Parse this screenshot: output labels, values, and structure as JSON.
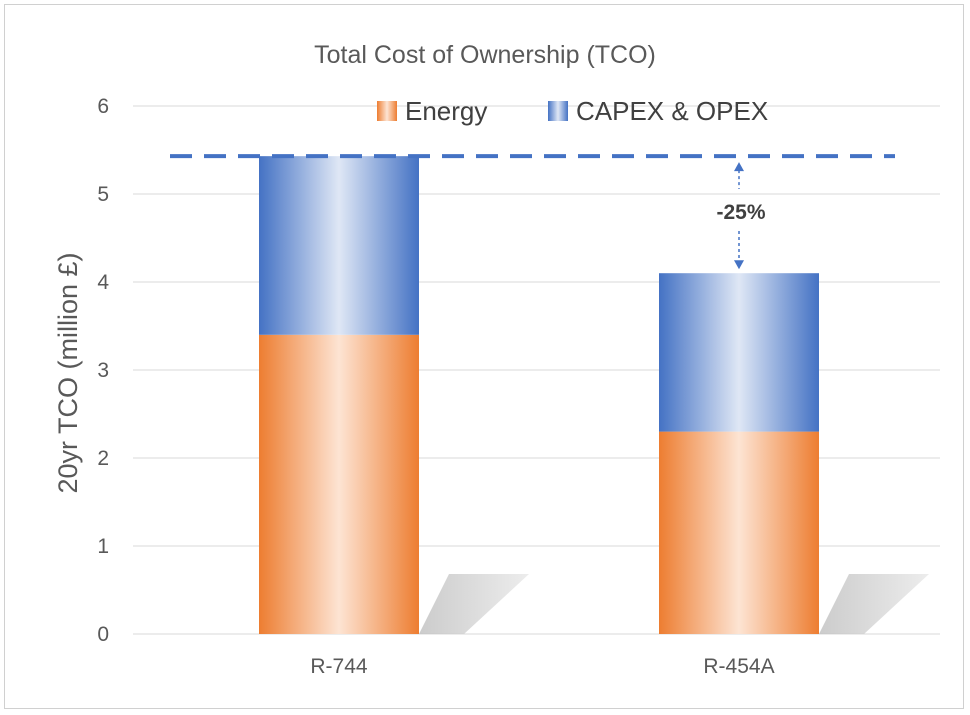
{
  "chart_data": {
    "type": "bar",
    "stacked": true,
    "title": "Total Cost of Ownership (TCO)",
    "ylabel": "20yr TCO (million £)",
    "xlabel": "",
    "categories": [
      "R-744",
      "R-454A"
    ],
    "series": [
      {
        "name": "Energy",
        "values": [
          3.4,
          2.3
        ],
        "color": "#ed7d31"
      },
      {
        "name": "CAPEX & OPEX",
        "values": [
          2.03,
          1.8
        ],
        "color": "#4472c4"
      }
    ],
    "ylim": [
      0,
      6
    ],
    "yticks": [
      "0",
      "1",
      "2",
      "3",
      "4",
      "5",
      "6"
    ],
    "grid": true,
    "legend": "top",
    "reference_line": {
      "value": 5.43,
      "style": "dashed",
      "color": "#4472c4"
    },
    "annotation": {
      "text": "-25%",
      "from": 5.43,
      "to": 4.1,
      "category": "R-454A"
    }
  }
}
